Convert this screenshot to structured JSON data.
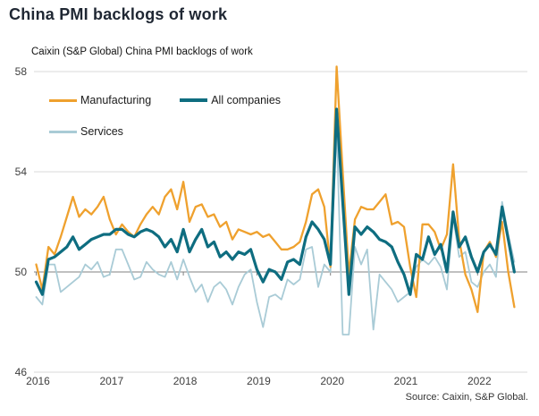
{
  "header": {
    "title": "China PMI backlogs of work"
  },
  "chart": {
    "subtitle": "Caixin (S&P Global) China PMI backlogs of work",
    "source": "Source: Caixin, S&P Global.",
    "colors": {
      "grid": "#d9d9d9",
      "reference_line": "#808080",
      "axis_text": "#3f3f3f"
    },
    "legend": {
      "items": [
        {
          "label": "Manufacturing",
          "color": "#EFA12E"
        },
        {
          "label": "All companies",
          "color": "#0E6D80"
        },
        {
          "label": "Services",
          "color": "#A9CBD6"
        }
      ]
    }
  },
  "chart_data": {
    "type": "line",
    "title": "Caixin (S&P Global) China PMI backlogs of work",
    "frequency": "monthly",
    "x_start": "2016-01",
    "x_end": "2022-07",
    "x_tick_labels": [
      "2016",
      "2017",
      "2018",
      "2019",
      "2020",
      "2021",
      "2022"
    ],
    "y_ticks": [
      46,
      50,
      54,
      58
    ],
    "ylim": [
      46,
      58
    ],
    "reference_line": 50,
    "grid": "horizontal",
    "legend_position": "top-left-inside",
    "series": [
      {
        "name": "Manufacturing",
        "color": "#EFA12E",
        "values": [
          50.3,
          49.3,
          51.0,
          50.7,
          51.4,
          52.2,
          53.0,
          52.2,
          52.5,
          52.3,
          52.6,
          53.0,
          52.1,
          51.5,
          51.9,
          51.6,
          51.4,
          51.9,
          52.3,
          52.6,
          52.3,
          53.0,
          53.3,
          52.5,
          53.6,
          52.0,
          52.6,
          52.7,
          52.2,
          52.3,
          51.8,
          52.0,
          51.3,
          51.7,
          51.6,
          51.5,
          51.6,
          51.4,
          51.5,
          51.2,
          50.9,
          50.9,
          51.0,
          51.2,
          52.0,
          53.1,
          53.3,
          52.6,
          50.2,
          58.2,
          54.0,
          49.9,
          52.1,
          52.6,
          52.5,
          52.5,
          52.8,
          53.1,
          51.9,
          52.0,
          51.8,
          50.2,
          49.0,
          51.9,
          51.9,
          51.6,
          50.9,
          51.5,
          54.3,
          51.3,
          49.9,
          49.3,
          48.4,
          50.8,
          51.2,
          50.6,
          52.0,
          50.0,
          48.6
        ]
      },
      {
        "name": "All companies",
        "color": "#0E6D80",
        "values": [
          49.6,
          49.1,
          50.5,
          50.6,
          50.8,
          51.0,
          51.4,
          50.9,
          51.1,
          51.3,
          51.4,
          51.5,
          51.5,
          51.7,
          51.7,
          51.5,
          51.4,
          51.6,
          51.7,
          51.6,
          51.4,
          51.0,
          51.3,
          50.8,
          51.7,
          50.8,
          51.3,
          51.7,
          51.0,
          51.2,
          50.6,
          50.8,
          50.5,
          50.8,
          50.7,
          50.9,
          50.1,
          49.6,
          50.1,
          50.0,
          49.7,
          50.4,
          50.5,
          50.3,
          51.4,
          52.0,
          51.7,
          51.3,
          50.3,
          56.5,
          52.8,
          49.1,
          51.8,
          51.5,
          51.8,
          51.6,
          51.3,
          51.2,
          51.0,
          50.4,
          49.9,
          49.1,
          50.7,
          50.5,
          51.4,
          50.7,
          51.1,
          50.0,
          52.4,
          51.0,
          51.4,
          50.6,
          50.0,
          50.8,
          51.1,
          50.7,
          52.6,
          51.3,
          50.0
        ]
      },
      {
        "name": "Services",
        "color": "#A9CBD6",
        "values": [
          49.0,
          48.7,
          50.3,
          50.3,
          49.2,
          49.4,
          49.6,
          49.8,
          50.3,
          50.1,
          50.4,
          49.8,
          49.9,
          50.9,
          50.9,
          50.3,
          49.7,
          49.8,
          50.4,
          50.1,
          49.9,
          49.8,
          50.4,
          49.7,
          50.5,
          49.8,
          49.2,
          49.5,
          48.8,
          49.4,
          49.6,
          49.3,
          48.7,
          49.4,
          49.9,
          50.1,
          48.8,
          47.8,
          49.0,
          49.1,
          48.9,
          49.7,
          49.5,
          49.7,
          50.9,
          51.0,
          49.4,
          50.3,
          50.0,
          55.8,
          47.5,
          47.5,
          51.0,
          50.3,
          50.9,
          47.7,
          49.9,
          49.6,
          49.3,
          48.8,
          49.0,
          49.2,
          50.2,
          50.5,
          50.3,
          50.6,
          50.2,
          49.3,
          52.2,
          50.6,
          50.8,
          49.6,
          49.4,
          50.0,
          50.3,
          49.8,
          52.8,
          51.5,
          50.4
        ]
      }
    ]
  }
}
